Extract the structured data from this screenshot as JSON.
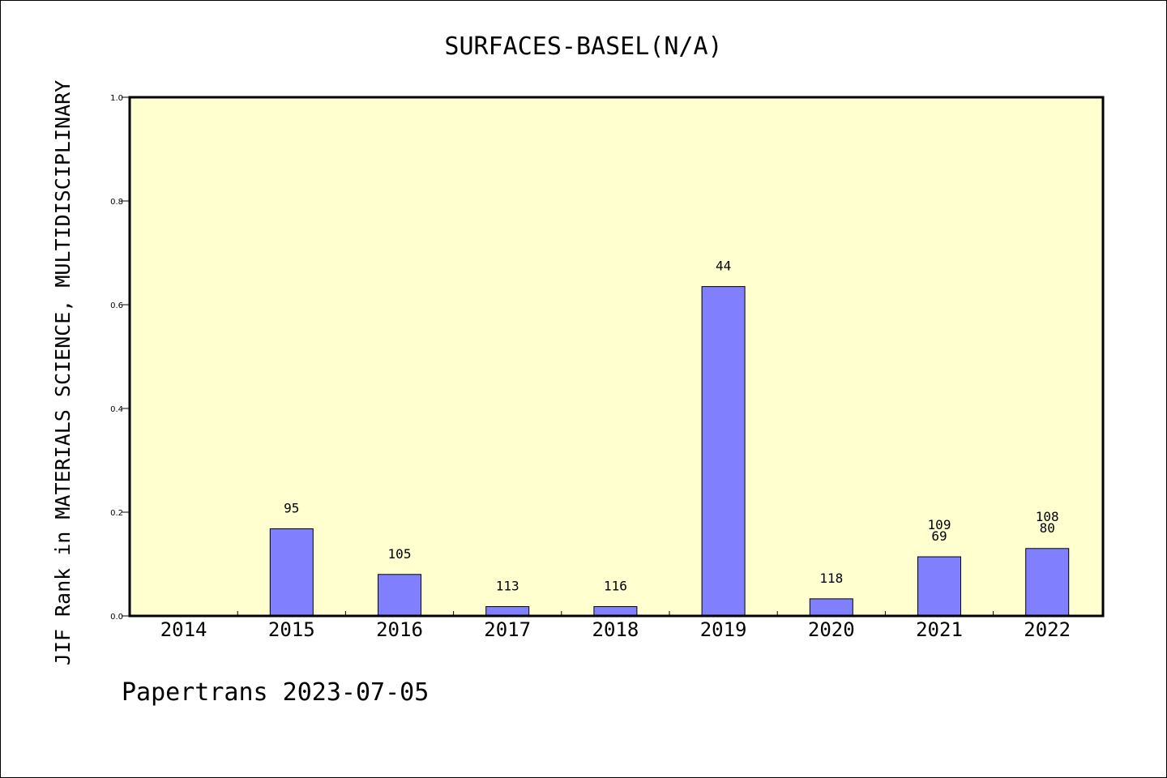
{
  "chart_data": {
    "type": "bar",
    "title": "SURFACES-BASEL(N/A)",
    "ylabel": "JIF Rank in MATERIALS SCIENCE, MULTIDISCIPLINARY",
    "xlabel": "",
    "categories": [
      "2014",
      "2015",
      "2016",
      "2017",
      "2018",
      "2019",
      "2020",
      "2021",
      "2022"
    ],
    "values": [
      0,
      0.168,
      0.08,
      0.018,
      0.018,
      0.635,
      0.033,
      0.114,
      0.13
    ],
    "data_labels": [
      [],
      [
        "95"
      ],
      [
        "105"
      ],
      [
        "113"
      ],
      [
        "116"
      ],
      [
        "44"
      ],
      [
        "118"
      ],
      [
        "109",
        "69"
      ],
      [
        "108",
        "80"
      ]
    ],
    "ylim": [
      0,
      1.0
    ],
    "yticks": [
      "0.0",
      "0.2",
      "0.4",
      "0.6",
      "0.8",
      "1.0"
    ],
    "grid": false,
    "plot_background": "#ffffd0",
    "bar_color": "#8080ff",
    "bar_edge_color": "#000000"
  },
  "footer": "Papertrans 2023-07-05"
}
